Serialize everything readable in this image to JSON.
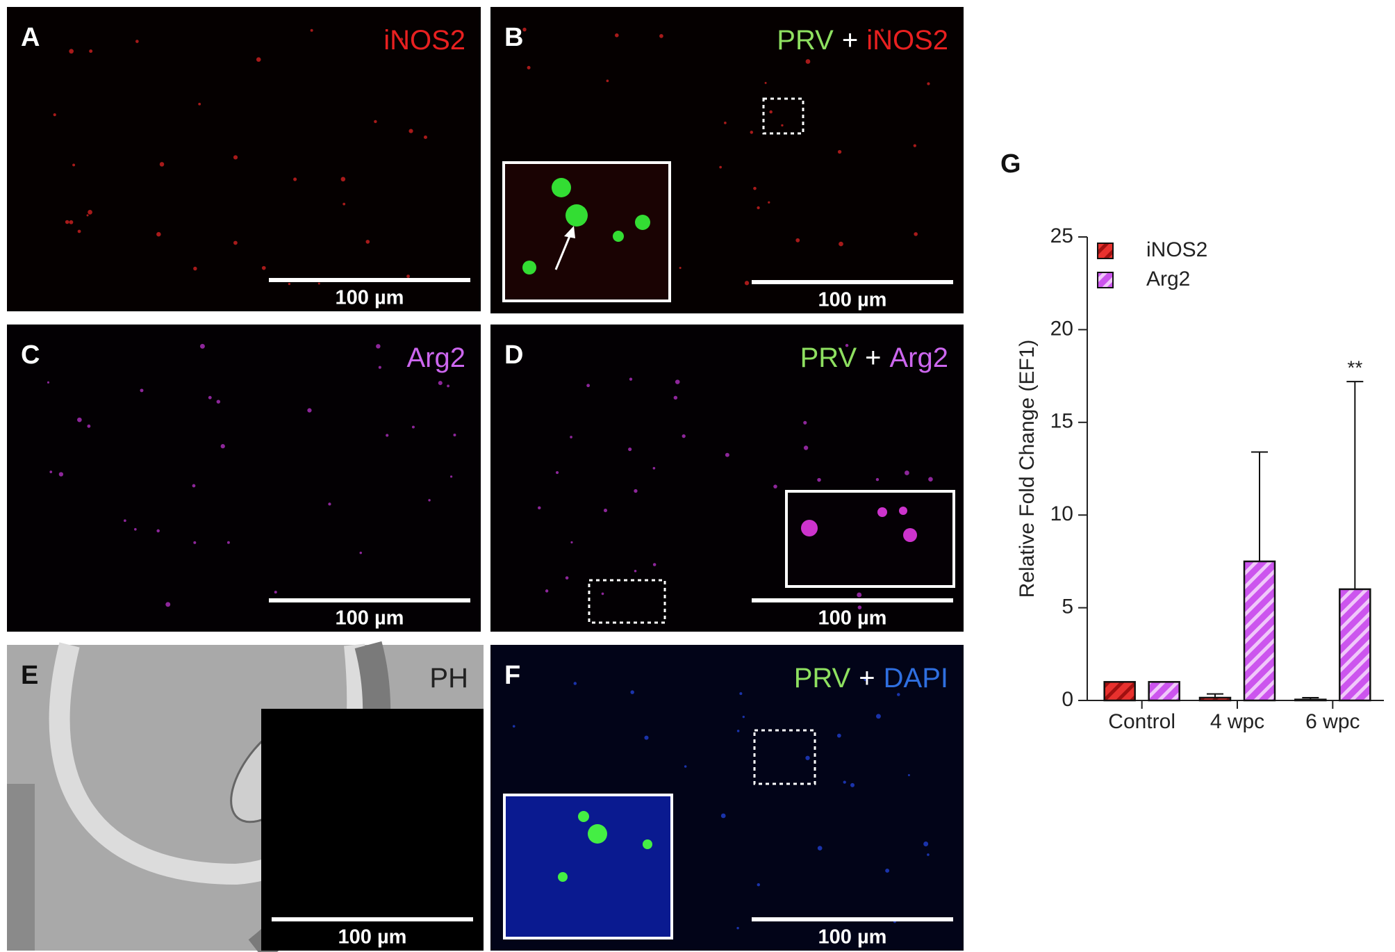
{
  "panels": [
    {
      "letter": "A",
      "labels": [
        "iNOS2"
      ],
      "scale_bar": "100 µm"
    },
    {
      "letter": "B",
      "labels": [
        "PRV",
        "+",
        "iNOS2"
      ],
      "scale_bar": "100 µm"
    },
    {
      "letter": "C",
      "labels": [
        "Arg2"
      ],
      "scale_bar": "100 µm"
    },
    {
      "letter": "D",
      "labels": [
        "PRV",
        "+",
        "Arg2"
      ],
      "scale_bar": "100 µm"
    },
    {
      "letter": "E",
      "labels": [
        "PH"
      ],
      "scale_bar": "100 µm"
    },
    {
      "letter": "F",
      "labels": [
        "PRV",
        "+",
        "DAPI"
      ],
      "scale_bar": "100 µm"
    }
  ],
  "chart_data": {
    "type": "bar",
    "panel_letter": "G",
    "y_label": "Relative Fold Change (EF1)",
    "categories": [
      "Control",
      "4 wpc",
      "6 wpc"
    ],
    "series": [
      {
        "name": "iNOS2",
        "color": "#e8312e",
        "values": [
          1,
          0.15,
          0.05
        ],
        "errors": [
          0,
          0.2,
          0.1
        ]
      },
      {
        "name": "Arg2",
        "color": "#cc55ee",
        "values": [
          1,
          7.5,
          6.0
        ],
        "errors": [
          0,
          5.9,
          11.2
        ]
      }
    ],
    "annotations": [
      "**"
    ],
    "ylim": [
      0,
      25
    ],
    "yticks": [
      0,
      5,
      10,
      15,
      20,
      25
    ],
    "legend": "upper left"
  }
}
